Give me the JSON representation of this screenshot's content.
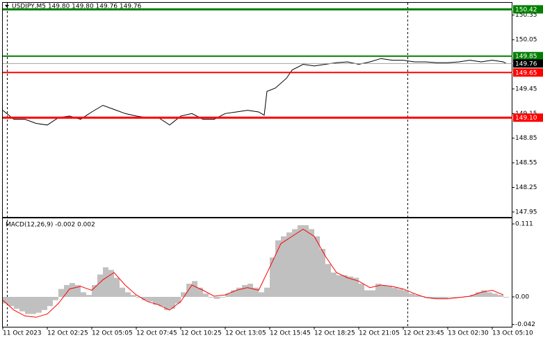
{
  "chart_data": [
    {
      "type": "line",
      "title": "USDJPY,M5  149.80 149.80 149.76 149.76",
      "xlim": [
        0,
        366.5
      ],
      "ylim": [
        147.89,
        150.5
      ],
      "yticks": [
        150.35,
        150.05,
        149.45,
        149.15,
        148.85,
        148.55,
        148.25,
        147.95
      ],
      "series": [
        {
          "type": "line",
          "color": "#000000",
          "x": [
            0,
            8,
            16,
            24,
            32,
            40,
            48,
            56,
            64,
            72,
            80,
            88,
            96,
            104,
            112,
            120,
            128,
            136,
            144,
            152,
            160,
            168,
            176,
            184,
            188,
            190,
            196,
            204,
            208,
            216,
            224,
            232,
            240,
            248,
            256,
            264,
            272,
            280,
            288,
            296,
            304,
            312,
            320,
            328,
            336,
            344,
            352,
            360,
            362
          ],
          "values": [
            149.19,
            149.08,
            149.08,
            149.03,
            149.01,
            149.1,
            149.12,
            149.08,
            149.17,
            149.25,
            149.2,
            149.15,
            149.12,
            149.1,
            149.1,
            149.01,
            149.12,
            149.15,
            149.08,
            149.08,
            149.15,
            149.17,
            149.19,
            149.17,
            149.13,
            149.42,
            149.46,
            149.58,
            149.68,
            149.75,
            149.73,
            149.75,
            149.77,
            149.78,
            149.75,
            149.78,
            149.82,
            149.8,
            149.8,
            149.78,
            149.78,
            149.77,
            149.77,
            149.78,
            149.8,
            149.78,
            149.8,
            149.78,
            149.76
          ]
        }
      ],
      "levels": [
        {
          "value": 150.42,
          "label": "150.42",
          "color": "#008000"
        },
        {
          "value": 149.85,
          "label": "149.85",
          "color": "#008000"
        },
        {
          "value": 149.76,
          "label": "149.76",
          "color": "#000000"
        },
        {
          "value": 149.65,
          "label": "149.65",
          "color": "#ff0000"
        },
        {
          "value": 149.1,
          "label": "149.10",
          "color": "#ff0000"
        }
      ]
    },
    {
      "type": "bar",
      "title": "MACD(12,26,9) -0.002 0.002",
      "xlim": [
        0,
        366.5
      ],
      "ylim": [
        -0.0455,
        0.1195
      ],
      "yticks": [
        0.111,
        {
          "value": 0,
          "label": "0.00"
        },
        -0.042
      ],
      "xticks": [
        {
          "value": 0,
          "label": "11 Oct 2023"
        },
        {
          "value": 32,
          "label": "12 Oct 02:25"
        },
        {
          "value": 64,
          "label": "12 Oct 05:05"
        },
        {
          "value": 96,
          "label": "12 Oct 07:45"
        },
        {
          "value": 128,
          "label": "12 Oct 10:25"
        },
        {
          "value": 160,
          "label": "12 Oct 13:05"
        },
        {
          "value": 192,
          "label": "12 Oct 15:45"
        },
        {
          "value": 224,
          "label": "12 Oct 18:25"
        },
        {
          "value": 256,
          "label": "12 Oct 21:05"
        },
        {
          "value": 288,
          "label": "12 Oct 23:45"
        },
        {
          "value": 320,
          "label": "13 Oct 02:30"
        },
        {
          "value": 352,
          "label": "13 Oct 05:10"
        }
      ],
      "series": [
        {
          "type": "bar",
          "color": "#c0c0c0",
          "x": [
            0,
            4,
            8,
            12,
            16,
            20,
            24,
            28,
            32,
            36,
            40,
            44,
            48,
            52,
            56,
            60,
            64,
            68,
            72,
            76,
            80,
            84,
            88,
            92,
            96,
            100,
            104,
            108,
            112,
            116,
            120,
            124,
            128,
            132,
            136,
            140,
            144,
            148,
            152,
            156,
            160,
            164,
            168,
            172,
            176,
            180,
            184,
            188,
            192,
            196,
            200,
            204,
            208,
            212,
            216,
            220,
            224,
            228,
            232,
            236,
            240,
            244,
            248,
            252,
            256,
            260,
            264,
            268,
            272,
            276,
            280,
            284,
            288,
            292,
            296,
            300,
            304,
            308,
            312,
            316,
            320,
            324,
            328,
            332,
            336,
            340,
            344,
            348,
            352,
            356,
            360
          ],
          "values": [
            -0.01,
            -0.014,
            -0.018,
            -0.022,
            -0.026,
            -0.026,
            -0.024,
            -0.02,
            -0.014,
            -0.005,
            0.012,
            0.018,
            0.021,
            0.018,
            0.007,
            0.003,
            0.018,
            0.034,
            0.045,
            0.041,
            0.029,
            0.014,
            0.007,
            0.003,
            -0.001,
            -0.005,
            -0.007,
            -0.012,
            -0.014,
            -0.02,
            -0.018,
            -0.01,
            0.007,
            0.02,
            0.024,
            0.014,
            0.005,
            -0.001,
            -0.003,
            -0.001,
            0.005,
            0.01,
            0.014,
            0.018,
            0.02,
            0.014,
            0.007,
            0.014,
            0.06,
            0.086,
            0.092,
            0.098,
            0.103,
            0.109,
            0.109,
            0.103,
            0.092,
            0.073,
            0.05,
            0.037,
            0.033,
            0.033,
            0.031,
            0.029,
            0.02,
            0.01,
            0.01,
            0.02,
            0.018,
            0.016,
            0.014,
            0.012,
            0.01,
            0.005,
            0.003,
            0.001,
            -0.001,
            -0.003,
            -0.003,
            -0.003,
            -0.001,
            -0.001,
            -0.001,
            0.001,
            0.003,
            0.007,
            0.01,
            0.007,
            0.005,
            0.003,
            -0.001
          ]
        },
        {
          "type": "line",
          "color": "#ff0000",
          "x": [
            0,
            8,
            16,
            24,
            32,
            40,
            48,
            56,
            64,
            72,
            80,
            88,
            96,
            104,
            112,
            120,
            128,
            136,
            144,
            152,
            160,
            168,
            176,
            184,
            192,
            200,
            208,
            216,
            224,
            232,
            240,
            248,
            256,
            264,
            272,
            280,
            288,
            296,
            304,
            312,
            320,
            328,
            336,
            344,
            352,
            360
          ],
          "values": [
            -0.005,
            -0.02,
            -0.029,
            -0.031,
            -0.026,
            -0.01,
            0.012,
            0.016,
            0.01,
            0.026,
            0.037,
            0.018,
            0.003,
            -0.007,
            -0.012,
            -0.02,
            -0.007,
            0.018,
            0.01,
            0.001,
            0.003,
            0.01,
            0.014,
            0.01,
            0.045,
            0.081,
            0.092,
            0.103,
            0.092,
            0.062,
            0.037,
            0.029,
            0.024,
            0.014,
            0.018,
            0.016,
            0.012,
            0.005,
            -0.001,
            -0.003,
            -0.003,
            -0.001,
            0.001,
            0.007,
            0.01,
            0.003
          ]
        }
      ]
    }
  ]
}
